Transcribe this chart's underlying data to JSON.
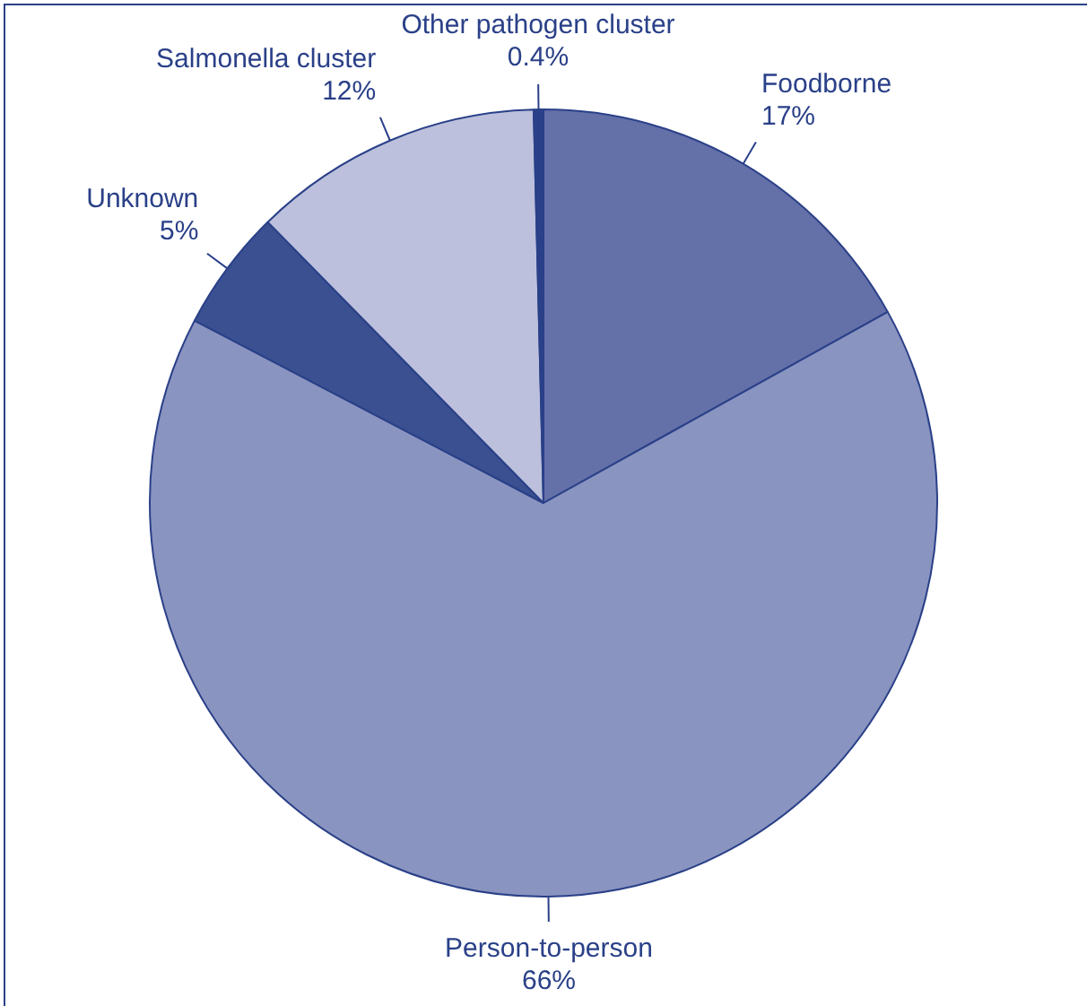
{
  "chart_data": {
    "type": "pie",
    "categories": [
      "Foodborne",
      "Person-to-person",
      "Unknown",
      "Salmonella cluster",
      "Other pathogen cluster"
    ],
    "values": [
      17,
      66,
      5,
      12,
      0.4
    ],
    "value_labels": [
      "17%",
      "66%",
      "5%",
      "12%",
      "0.4%"
    ],
    "colors": [
      "#6470a8",
      "#8a94c0",
      "#3a5090",
      "#bcc0dc",
      "#2a4088"
    ],
    "legend": false
  }
}
